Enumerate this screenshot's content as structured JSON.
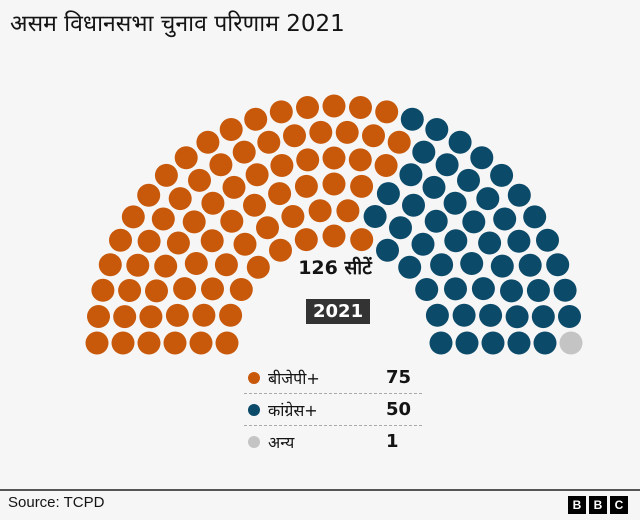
{
  "title": "असम विधानसभा चुनाव परिणाम 2021",
  "seats_label": "126 सीटें",
  "year_badge": "2021",
  "source": "Source: TCPD",
  "logo": [
    "B",
    "B",
    "C"
  ],
  "chart_data": {
    "type": "parliament",
    "total": 126,
    "rows": 6,
    "series": [
      {
        "name": "बीजेपी+",
        "value": 75,
        "color": "#c8590b"
      },
      {
        "name": "कांग्रेस+",
        "value": 50,
        "color": "#0c4a6a"
      },
      {
        "name": "अन्य",
        "value": 1,
        "color": "#c4c4c4"
      }
    ]
  }
}
